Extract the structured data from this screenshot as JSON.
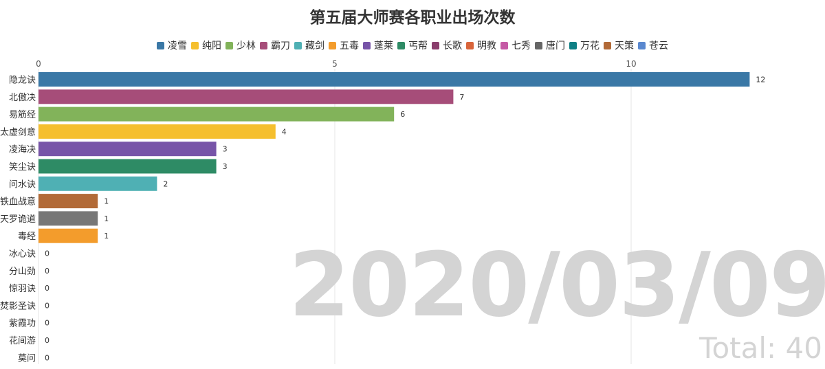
{
  "chart_data": {
    "type": "bar",
    "orientation": "horizontal",
    "title": "第五届大师赛各职业出场次数",
    "legend": [
      {
        "name": "凌雪",
        "color": "#3a78a6"
      },
      {
        "name": "纯阳",
        "color": "#f5bf2e"
      },
      {
        "name": "少林",
        "color": "#82b35a"
      },
      {
        "name": "霸刀",
        "color": "#a64d79"
      },
      {
        "name": "藏剑",
        "color": "#4fb0b4"
      },
      {
        "name": "五毒",
        "color": "#f39c2c"
      },
      {
        "name": "蓬莱",
        "color": "#7754a8"
      },
      {
        "name": "丐帮",
        "color": "#2e8b65"
      },
      {
        "name": "长歌",
        "color": "#8a3e6c"
      },
      {
        "name": "明教",
        "color": "#d9653b"
      },
      {
        "name": "七秀",
        "color": "#c55aa5"
      },
      {
        "name": "唐门",
        "color": "#666666"
      },
      {
        "name": "万花",
        "color": "#0e7f84"
      },
      {
        "name": "天策",
        "color": "#b26a37"
      },
      {
        "name": "苍云",
        "color": "#5a88cf"
      }
    ],
    "xlim": [
      0,
      12
    ],
    "xticks": [
      0,
      5,
      10
    ],
    "grid": true,
    "axis_position": "top",
    "bars": [
      {
        "category": "隐龙诀",
        "value": 12,
        "color": "#3a78a6"
      },
      {
        "category": "北傲决",
        "value": 7,
        "color": "#a64d79"
      },
      {
        "category": "易筋经",
        "value": 6,
        "color": "#82b35a"
      },
      {
        "category": "太虚剑意",
        "value": 4,
        "color": "#f5bf2e"
      },
      {
        "category": "凌海决",
        "value": 3,
        "color": "#7754a8"
      },
      {
        "category": "笑尘诀",
        "value": 3,
        "color": "#2e8b65"
      },
      {
        "category": "问水诀",
        "value": 2,
        "color": "#4fb0b4"
      },
      {
        "category": "铁血战意",
        "value": 1,
        "color": "#b26a37"
      },
      {
        "category": "天罗诡道",
        "value": 1,
        "color": "#777777"
      },
      {
        "category": "毒经",
        "value": 1,
        "color": "#f39c2c"
      },
      {
        "category": "冰心诀",
        "value": 0,
        "color": "#c55aa5"
      },
      {
        "category": "分山劲",
        "value": 0,
        "color": "#555555"
      },
      {
        "category": "惊羽诀",
        "value": 0,
        "color": "#666666"
      },
      {
        "category": "焚影圣诀",
        "value": 0,
        "color": "#d9653b"
      },
      {
        "category": "紫霞功",
        "value": 0,
        "color": "#f5bf2e"
      },
      {
        "category": "花间游",
        "value": 0,
        "color": "#0e7f84"
      },
      {
        "category": "莫问",
        "value": 0,
        "color": "#8a3e6c"
      }
    ],
    "date": "2020/03/09",
    "total": "Total: 40"
  }
}
